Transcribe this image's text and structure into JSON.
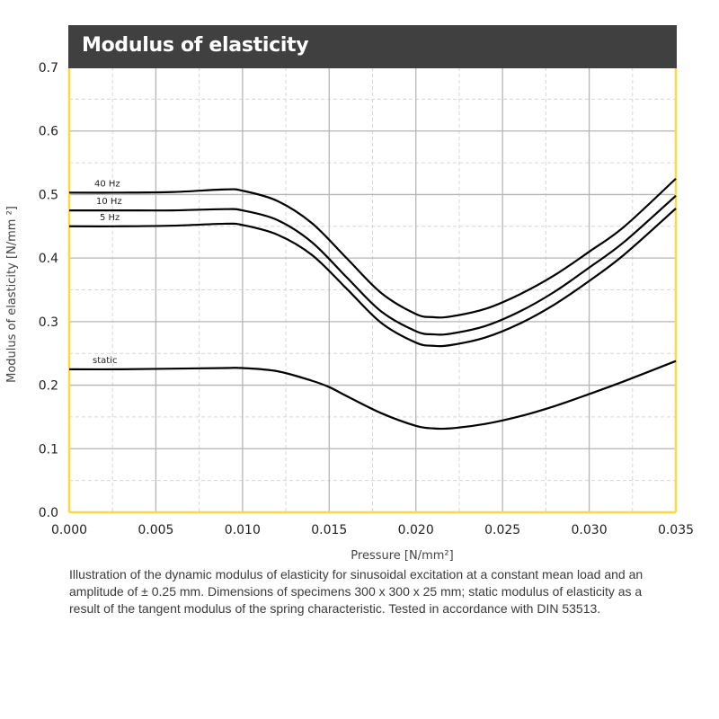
{
  "chart_data": {
    "type": "line",
    "title": "Modulus of elasticity",
    "xlabel": "Pressure [N/mm²]",
    "ylabel": "Modulus of elasticity   [N/mm ²]",
    "xlim": [
      0.0,
      0.035
    ],
    "ylim": [
      0.0,
      0.7
    ],
    "x_ticks": [
      "0.000",
      "0.005",
      "0.010",
      "0.015",
      "0.020",
      "0.025",
      "0.030",
      "0.035"
    ],
    "y_ticks": [
      "0.0",
      "0.1",
      "0.2",
      "0.3",
      "0.4",
      "0.5",
      "0.6",
      "0.7"
    ],
    "grid": true,
    "legend": "inline-left",
    "series": [
      {
        "name": "40 Hz",
        "x": [
          0.0,
          0.003,
          0.006,
          0.009,
          0.01,
          0.012,
          0.014,
          0.016,
          0.018,
          0.02,
          0.021,
          0.022,
          0.024,
          0.026,
          0.028,
          0.03,
          0.032,
          0.035
        ],
        "y": [
          0.503,
          0.503,
          0.504,
          0.508,
          0.506,
          0.49,
          0.455,
          0.4,
          0.345,
          0.312,
          0.307,
          0.308,
          0.32,
          0.343,
          0.373,
          0.41,
          0.449,
          0.525
        ]
      },
      {
        "name": "10 Hz",
        "x": [
          0.0,
          0.003,
          0.006,
          0.009,
          0.01,
          0.012,
          0.014,
          0.016,
          0.018,
          0.02,
          0.021,
          0.022,
          0.024,
          0.026,
          0.028,
          0.03,
          0.032,
          0.035
        ],
        "y": [
          0.475,
          0.475,
          0.475,
          0.477,
          0.475,
          0.46,
          0.425,
          0.37,
          0.316,
          0.285,
          0.28,
          0.281,
          0.293,
          0.316,
          0.347,
          0.385,
          0.425,
          0.498
        ]
      },
      {
        "name": "5 Hz",
        "x": [
          0.0,
          0.003,
          0.006,
          0.009,
          0.01,
          0.012,
          0.014,
          0.016,
          0.018,
          0.02,
          0.021,
          0.022,
          0.024,
          0.026,
          0.028,
          0.03,
          0.032,
          0.035
        ],
        "y": [
          0.45,
          0.45,
          0.451,
          0.454,
          0.452,
          0.437,
          0.405,
          0.352,
          0.298,
          0.267,
          0.262,
          0.263,
          0.275,
          0.297,
          0.327,
          0.364,
          0.405,
          0.478
        ]
      },
      {
        "name": "static",
        "x": [
          0.0,
          0.003,
          0.006,
          0.009,
          0.01,
          0.012,
          0.014,
          0.015,
          0.016,
          0.018,
          0.02,
          0.021,
          0.022,
          0.024,
          0.026,
          0.028,
          0.03,
          0.032,
          0.035
        ],
        "y": [
          0.225,
          0.225,
          0.226,
          0.227,
          0.227,
          0.222,
          0.207,
          0.197,
          0.183,
          0.156,
          0.136,
          0.132,
          0.132,
          0.139,
          0.151,
          0.167,
          0.186,
          0.206,
          0.238
        ]
      }
    ]
  },
  "header": {
    "title": "Modulus of elasticity"
  },
  "caption": "Illustration of the dynamic modulus of elasticity for sinusoidal excitation at a constant mean load and an amplitude of ± 0.25 mm. Dimensions of specimens 300 x 300 x 25 mm; static modulus of elasticity as a result of the tangent modulus of the spring characteristic. Tested in accordance with DIN 53513.",
  "colors": {
    "title_bar": "#404040",
    "frame": "#ffd740",
    "line": "#000000",
    "grid_major": "#b5b5b5",
    "grid_minor": "#d6d6d6"
  }
}
